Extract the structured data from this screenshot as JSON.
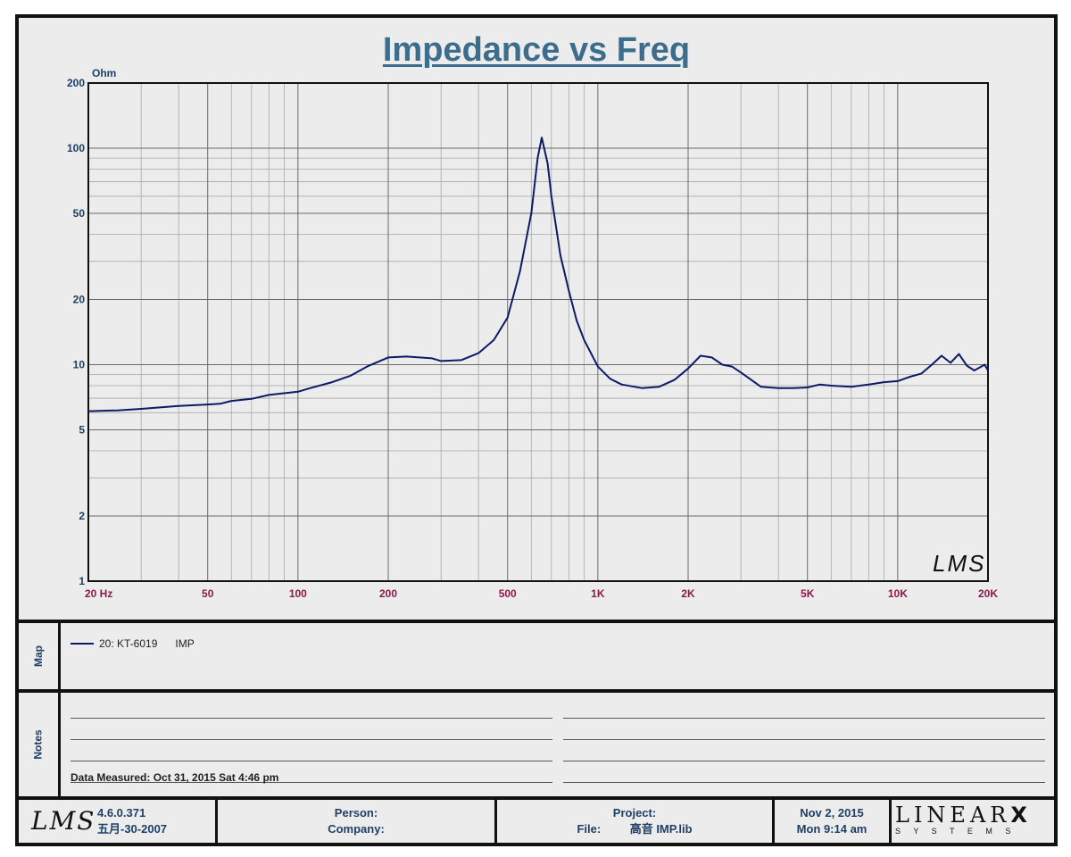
{
  "title": "Impedance vs Freq",
  "chart_data": {
    "type": "line",
    "title": "Impedance vs Freq",
    "ylabel": "Ohm",
    "xlabel": "Hz",
    "x_scale": "log",
    "y_scale": "log",
    "xlim": [
      20,
      20000
    ],
    "ylim": [
      1,
      200
    ],
    "grid": true,
    "x_ticks": [
      {
        "value": 20,
        "label": "20  Hz"
      },
      {
        "value": 50,
        "label": "50"
      },
      {
        "value": 100,
        "label": "100"
      },
      {
        "value": 200,
        "label": "200"
      },
      {
        "value": 500,
        "label": "500"
      },
      {
        "value": 1000,
        "label": "1K"
      },
      {
        "value": 2000,
        "label": "2K"
      },
      {
        "value": 5000,
        "label": "5K"
      },
      {
        "value": 10000,
        "label": "10K"
      },
      {
        "value": 20000,
        "label": "20K"
      }
    ],
    "y_ticks": [
      {
        "value": 1,
        "label": "1"
      },
      {
        "value": 2,
        "label": "2"
      },
      {
        "value": 5,
        "label": "5"
      },
      {
        "value": 10,
        "label": "10"
      },
      {
        "value": 20,
        "label": "20"
      },
      {
        "value": 50,
        "label": "50"
      },
      {
        "value": 100,
        "label": "100"
      },
      {
        "value": 200,
        "label": "200"
      }
    ],
    "series": [
      {
        "name": "20: KT-6019",
        "color": "#0d1a66",
        "points": [
          [
            20,
            6.1
          ],
          [
            25,
            6.15
          ],
          [
            30,
            6.25
          ],
          [
            40,
            6.45
          ],
          [
            50,
            6.55
          ],
          [
            55,
            6.6
          ],
          [
            60,
            6.8
          ],
          [
            70,
            6.95
          ],
          [
            80,
            7.25
          ],
          [
            100,
            7.5
          ],
          [
            110,
            7.8
          ],
          [
            130,
            8.3
          ],
          [
            150,
            8.9
          ],
          [
            170,
            9.8
          ],
          [
            200,
            10.8
          ],
          [
            230,
            10.9
          ],
          [
            280,
            10.7
          ],
          [
            300,
            10.4
          ],
          [
            350,
            10.5
          ],
          [
            400,
            11.3
          ],
          [
            450,
            13
          ],
          [
            500,
            16.5
          ],
          [
            550,
            27
          ],
          [
            600,
            50
          ],
          [
            630,
            90
          ],
          [
            650,
            112
          ],
          [
            680,
            85
          ],
          [
            700,
            60
          ],
          [
            750,
            32
          ],
          [
            800,
            22
          ],
          [
            850,
            16
          ],
          [
            900,
            13
          ],
          [
            1000,
            9.8
          ],
          [
            1100,
            8.6
          ],
          [
            1200,
            8.1
          ],
          [
            1400,
            7.8
          ],
          [
            1600,
            7.9
          ],
          [
            1800,
            8.5
          ],
          [
            2000,
            9.6
          ],
          [
            2200,
            11
          ],
          [
            2400,
            10.8
          ],
          [
            2600,
            10
          ],
          [
            2800,
            9.8
          ],
          [
            3000,
            9.2
          ],
          [
            3500,
            7.9
          ],
          [
            4000,
            7.8
          ],
          [
            4500,
            7.8
          ],
          [
            5000,
            7.85
          ],
          [
            5500,
            8.1
          ],
          [
            6000,
            8.0
          ],
          [
            7000,
            7.9
          ],
          [
            8000,
            8.1
          ],
          [
            9000,
            8.3
          ],
          [
            10000,
            8.4
          ],
          [
            11000,
            8.8
          ],
          [
            12000,
            9.1
          ],
          [
            13000,
            10.0
          ],
          [
            14000,
            11.0
          ],
          [
            15000,
            10.2
          ],
          [
            16000,
            11.2
          ],
          [
            17000,
            9.9
          ],
          [
            18000,
            9.4
          ],
          [
            19000,
            9.8
          ],
          [
            19500,
            10.0
          ],
          [
            20000,
            9.4
          ]
        ]
      }
    ]
  },
  "watermark": "LMS",
  "map": {
    "label": "Map",
    "entry_name": "20: KT-6019",
    "entry_type": "IMP"
  },
  "notes": {
    "label": "Notes",
    "measured": "Data Measured: Oct 31, 2015  Sat  4:46 pm"
  },
  "footer": {
    "logo": "LMS",
    "version": "4.6.0.371",
    "build_date": "五月-30-2007",
    "person_label": "Person:",
    "company_label": "Company:",
    "project_label": "Project:",
    "file_label": "File:",
    "file_value": "高音 IMP.lib",
    "date": "Nov  2, 2015",
    "time": "Mon  9:14 am",
    "brand": "LINEAR",
    "brand_mark": "X",
    "brand_sub": "S Y S T E M S"
  }
}
